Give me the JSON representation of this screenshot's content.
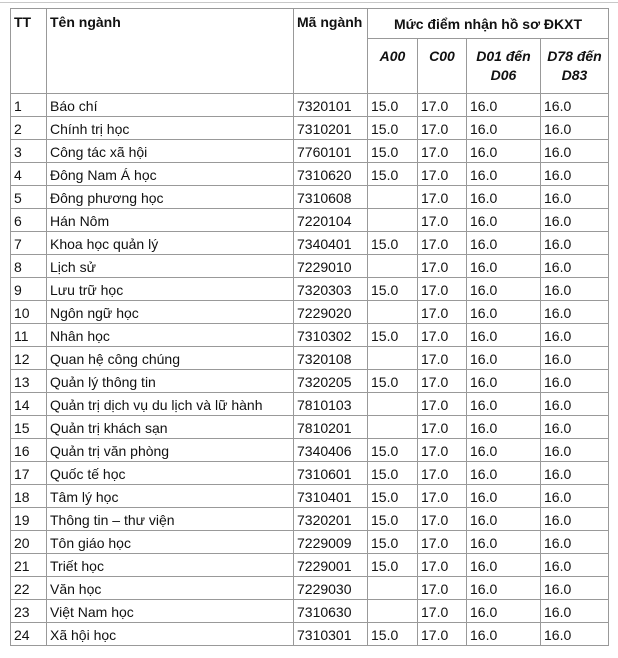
{
  "headers": {
    "tt": "TT",
    "ten": "Tên ngành",
    "ma": "Mã ngành",
    "group": "Mức điểm nhận hồ sơ ĐKXT",
    "a00": "A00",
    "c00": "C00",
    "d01": "D01 đến D06",
    "d78": "D78 đến D83"
  },
  "rows": [
    [
      "1",
      "Báo chí",
      "7320101",
      "15.0",
      "17.0",
      "16.0",
      "16.0"
    ],
    [
      "2",
      "Chính trị học",
      "7310201",
      "15.0",
      "17.0",
      "16.0",
      "16.0"
    ],
    [
      "3",
      "Công tác xã hội",
      "7760101",
      "15.0",
      "17.0",
      "16.0",
      "16.0"
    ],
    [
      "4",
      "Đông Nam Á học",
      "7310620",
      "15.0",
      "17.0",
      "16.0",
      "16.0"
    ],
    [
      "5",
      "Đông phương học",
      "7310608",
      "",
      "17.0",
      "16.0",
      "16.0"
    ],
    [
      "6",
      "Hán Nôm",
      "7220104",
      "",
      "17.0",
      "16.0",
      "16.0"
    ],
    [
      "7",
      "Khoa học quản lý",
      "7340401",
      "15.0",
      "17.0",
      "16.0",
      "16.0"
    ],
    [
      "8",
      "Lịch sử",
      "7229010",
      "",
      "17.0",
      "16.0",
      "16.0"
    ],
    [
      "9",
      "Lưu trữ học",
      "7320303",
      "15.0",
      "17.0",
      "16.0",
      "16.0"
    ],
    [
      "10",
      "Ngôn ngữ học",
      "7229020",
      "",
      "17.0",
      "16.0",
      "16.0"
    ],
    [
      "11",
      "Nhân học",
      "7310302",
      "15.0",
      "17.0",
      "16.0",
      "16.0"
    ],
    [
      "12",
      "Quan hệ công chúng",
      "7320108",
      "",
      "17.0",
      "16.0",
      "16.0"
    ],
    [
      "13",
      "Quản lý thông tin",
      "7320205",
      "15.0",
      "17.0",
      "16.0",
      "16.0"
    ],
    [
      "14",
      "Quản trị dịch vụ du lịch và lữ hành",
      "7810103",
      "",
      "17.0",
      "16.0",
      "16.0"
    ],
    [
      "15",
      "Quản trị khách sạn",
      "7810201",
      "",
      "17.0",
      "16.0",
      "16.0"
    ],
    [
      "16",
      "Quản trị văn phòng",
      "7340406",
      "15.0",
      "17.0",
      "16.0",
      "16.0"
    ],
    [
      "17",
      "Quốc tế học",
      "7310601",
      "15.0",
      "17.0",
      "16.0",
      "16.0"
    ],
    [
      "18",
      "Tâm lý học",
      "7310401",
      "15.0",
      "17.0",
      "16.0",
      "16.0"
    ],
    [
      "19",
      "Thông tin – thư viện",
      "7320201",
      "15.0",
      "17.0",
      "16.0",
      "16.0"
    ],
    [
      "20",
      "Tôn giáo học",
      "7229009",
      "15.0",
      "17.0",
      "16.0",
      "16.0"
    ],
    [
      "21",
      "Triết học",
      "7229001",
      "15.0",
      "17.0",
      "16.0",
      "16.0"
    ],
    [
      "22",
      "Văn học",
      "7229030",
      "",
      "17.0",
      "16.0",
      "16.0"
    ],
    [
      "23",
      "Việt Nam học",
      "7310630",
      "",
      "17.0",
      "16.0",
      "16.0"
    ],
    [
      "24",
      "Xã hội học",
      "7310301",
      "15.0",
      "17.0",
      "16.0",
      "16.0"
    ]
  ]
}
